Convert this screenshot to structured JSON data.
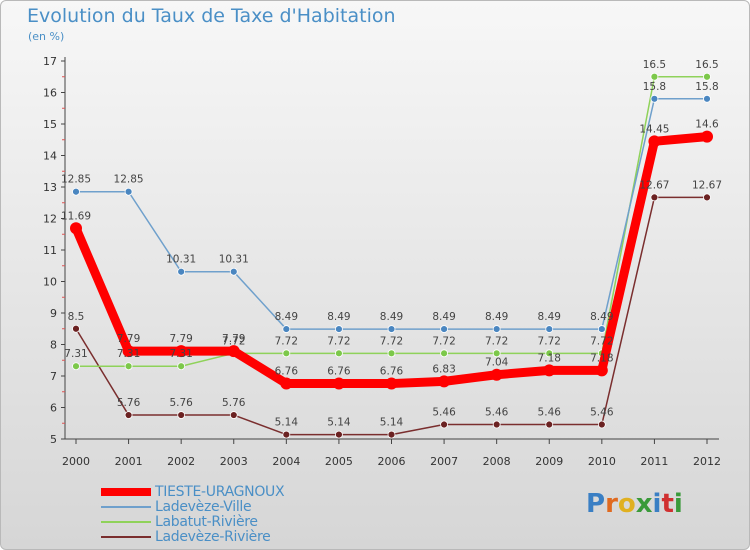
{
  "header": {
    "title": "Evolution du Taux de Taxe d'Habitation",
    "subtitle": "(en %)"
  },
  "logo": {
    "text": "Proxiti",
    "colors": [
      "#3a7fc4",
      "#e06a20",
      "#e0b020",
      "#3a9a3a",
      "#3a7fc4",
      "#d03030",
      "#3a9a3a"
    ]
  },
  "chart_data": {
    "type": "line",
    "categories": [
      "2000",
      "2001",
      "2002",
      "2003",
      "2004",
      "2005",
      "2006",
      "2007",
      "2008",
      "2009",
      "2010",
      "2011",
      "2012"
    ],
    "ylim": [
      5,
      17
    ],
    "yticks": [
      "5",
      "6",
      "7",
      "8",
      "9",
      "10",
      "11",
      "12",
      "13",
      "14",
      "15",
      "16",
      "17"
    ],
    "grid": false,
    "legend_position": "bottom-left",
    "series": [
      {
        "name": "TIESTE-URAGNOUX",
        "color": "#ff0000",
        "values": [
          11.69,
          7.79,
          7.79,
          7.79,
          6.76,
          6.76,
          6.76,
          6.83,
          7.04,
          7.18,
          7.18,
          14.45,
          14.6
        ],
        "labels": [
          "11.69",
          "7.79",
          "7.79",
          "7.79",
          "6.76",
          "6.76",
          "6.76",
          "6.83",
          "7.04",
          "7.18",
          "7.18",
          "14.45",
          "14.6"
        ]
      },
      {
        "name": "Ladevèze-Ville",
        "color": "#6fa0cc",
        "values": [
          12.85,
          12.85,
          10.31,
          10.31,
          8.49,
          8.49,
          8.49,
          8.49,
          8.49,
          8.49,
          8.49,
          15.8,
          15.8
        ],
        "labels": [
          "12.85",
          "12.85",
          "10.31",
          "10.31",
          "8.49",
          "8.49",
          "8.49",
          "8.49",
          "8.49",
          "8.49",
          "8.49",
          "15.8",
          "15.8"
        ]
      },
      {
        "name": "Labatut-Rivière",
        "color": "#8fd25a",
        "values": [
          7.31,
          7.31,
          7.31,
          7.72,
          7.72,
          7.72,
          7.72,
          7.72,
          7.72,
          7.72,
          7.72,
          16.5,
          16.5
        ],
        "labels": [
          "7.31",
          "7.31",
          "7.31",
          "7.72",
          "7.72",
          "7.72",
          "7.72",
          "7.72",
          "7.72",
          "7.72",
          "7.72",
          "16.5",
          "16.5"
        ]
      },
      {
        "name": "Ladevèze-Rivière",
        "color": "#7a2e2e",
        "values": [
          8.5,
          5.76,
          5.76,
          5.76,
          5.14,
          5.14,
          5.14,
          5.46,
          5.46,
          5.46,
          5.46,
          12.67,
          12.67
        ],
        "labels": [
          "8.5",
          "5.76",
          "5.76",
          "5.76",
          "5.14",
          "5.14",
          "5.14",
          "5.46",
          "5.46",
          "5.46",
          "5.46",
          "12.67",
          "12.67"
        ]
      }
    ]
  }
}
